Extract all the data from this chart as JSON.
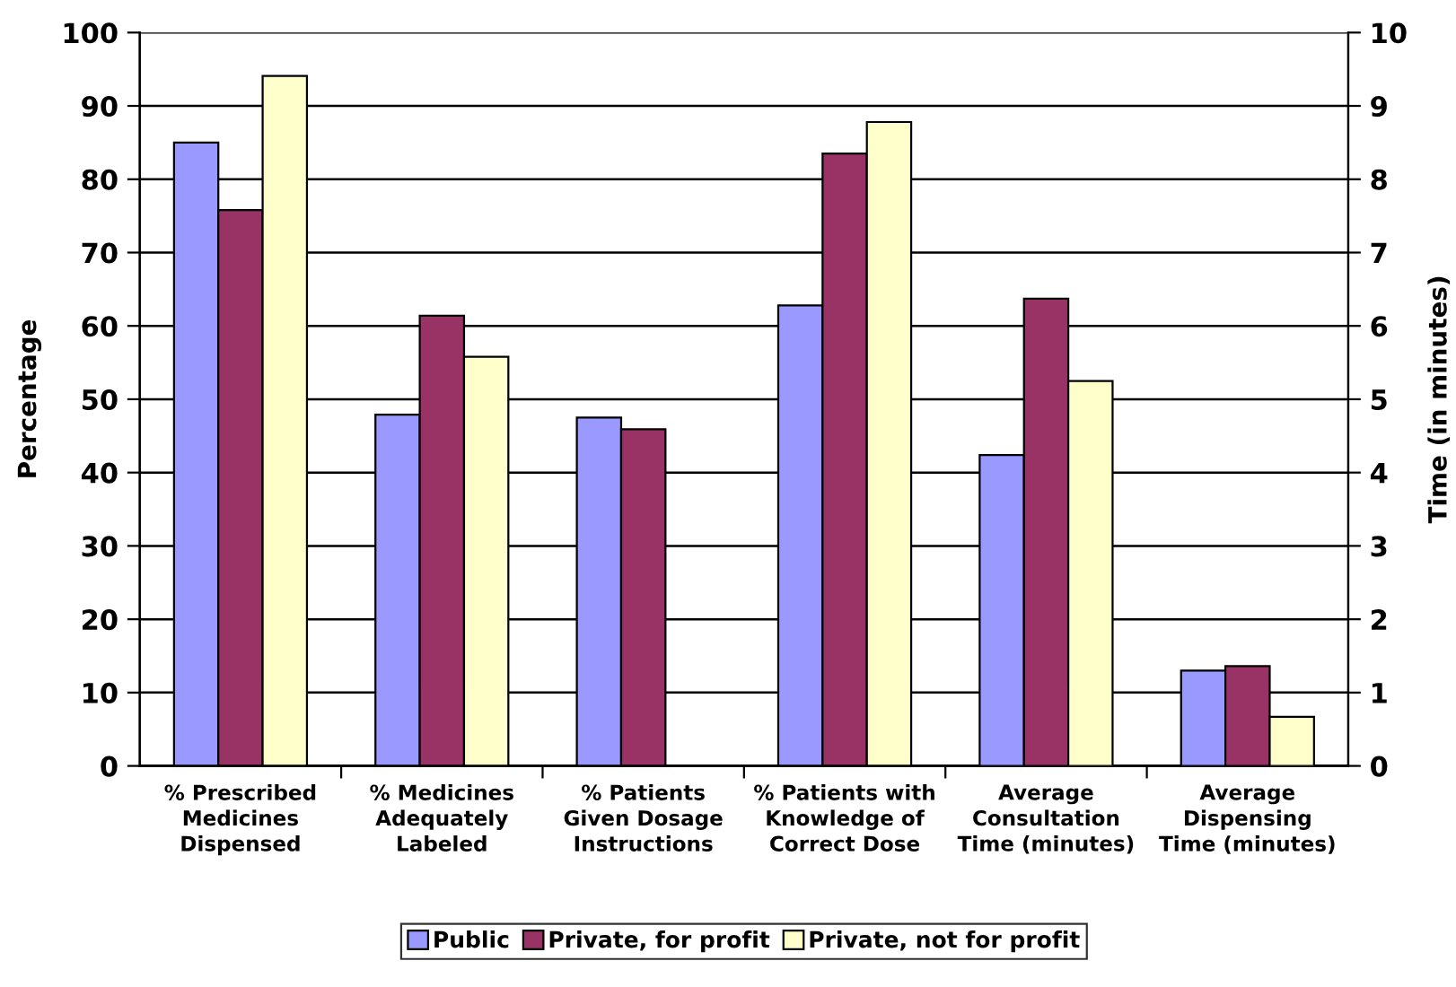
{
  "chart_data": {
    "type": "bar",
    "categories": [
      "% Prescribed Medicines Dispensed",
      "% Medicines Adequately Labeled",
      "% Patients Given Dosage Instructions",
      "% Patients with Knowledge of Correct Dose",
      "Average Consultation Time (minutes)",
      "Average Dispensing Time (minutes)"
    ],
    "series": [
      {
        "name": "Public",
        "color": "#9999ff",
        "values": [
          85,
          47.9,
          47.5,
          62.8,
          null,
          null
        ]
      },
      {
        "name": "Private, for profit",
        "color": "#993366",
        "values": [
          75.8,
          61.4,
          45.9,
          83.5,
          null,
          null
        ]
      },
      {
        "name": "Private, not for profit",
        "color": "#ffffcc",
        "values": [
          94.1,
          55.8,
          null,
          87.8,
          null,
          null
        ]
      },
      {
        "color": "#9999ff",
        "axis": "y2",
        "values": [
          null,
          null,
          null,
          null,
          4.24,
          1.3
        ]
      },
      {
        "color": "#993366",
        "axis": "y2",
        "values": [
          null,
          null,
          null,
          null,
          6.37,
          1.36
        ]
      },
      {
        "color": "#ffffcc",
        "axis": "y2",
        "values": [
          null,
          null,
          null,
          null,
          5.25,
          0.67
        ]
      }
    ],
    "ylabel": "Percentage",
    "y2label": "Time (in minutes)",
    "ylim": [
      0,
      100
    ],
    "yticks": [
      0,
      10,
      20,
      30,
      40,
      50,
      60,
      70,
      80,
      90,
      100
    ],
    "y2lim": [
      0,
      10
    ],
    "y2ticks": [
      0,
      1,
      2,
      3,
      4,
      5,
      6,
      7,
      8,
      9,
      10
    ],
    "grid": "y",
    "legend": "bottom"
  }
}
